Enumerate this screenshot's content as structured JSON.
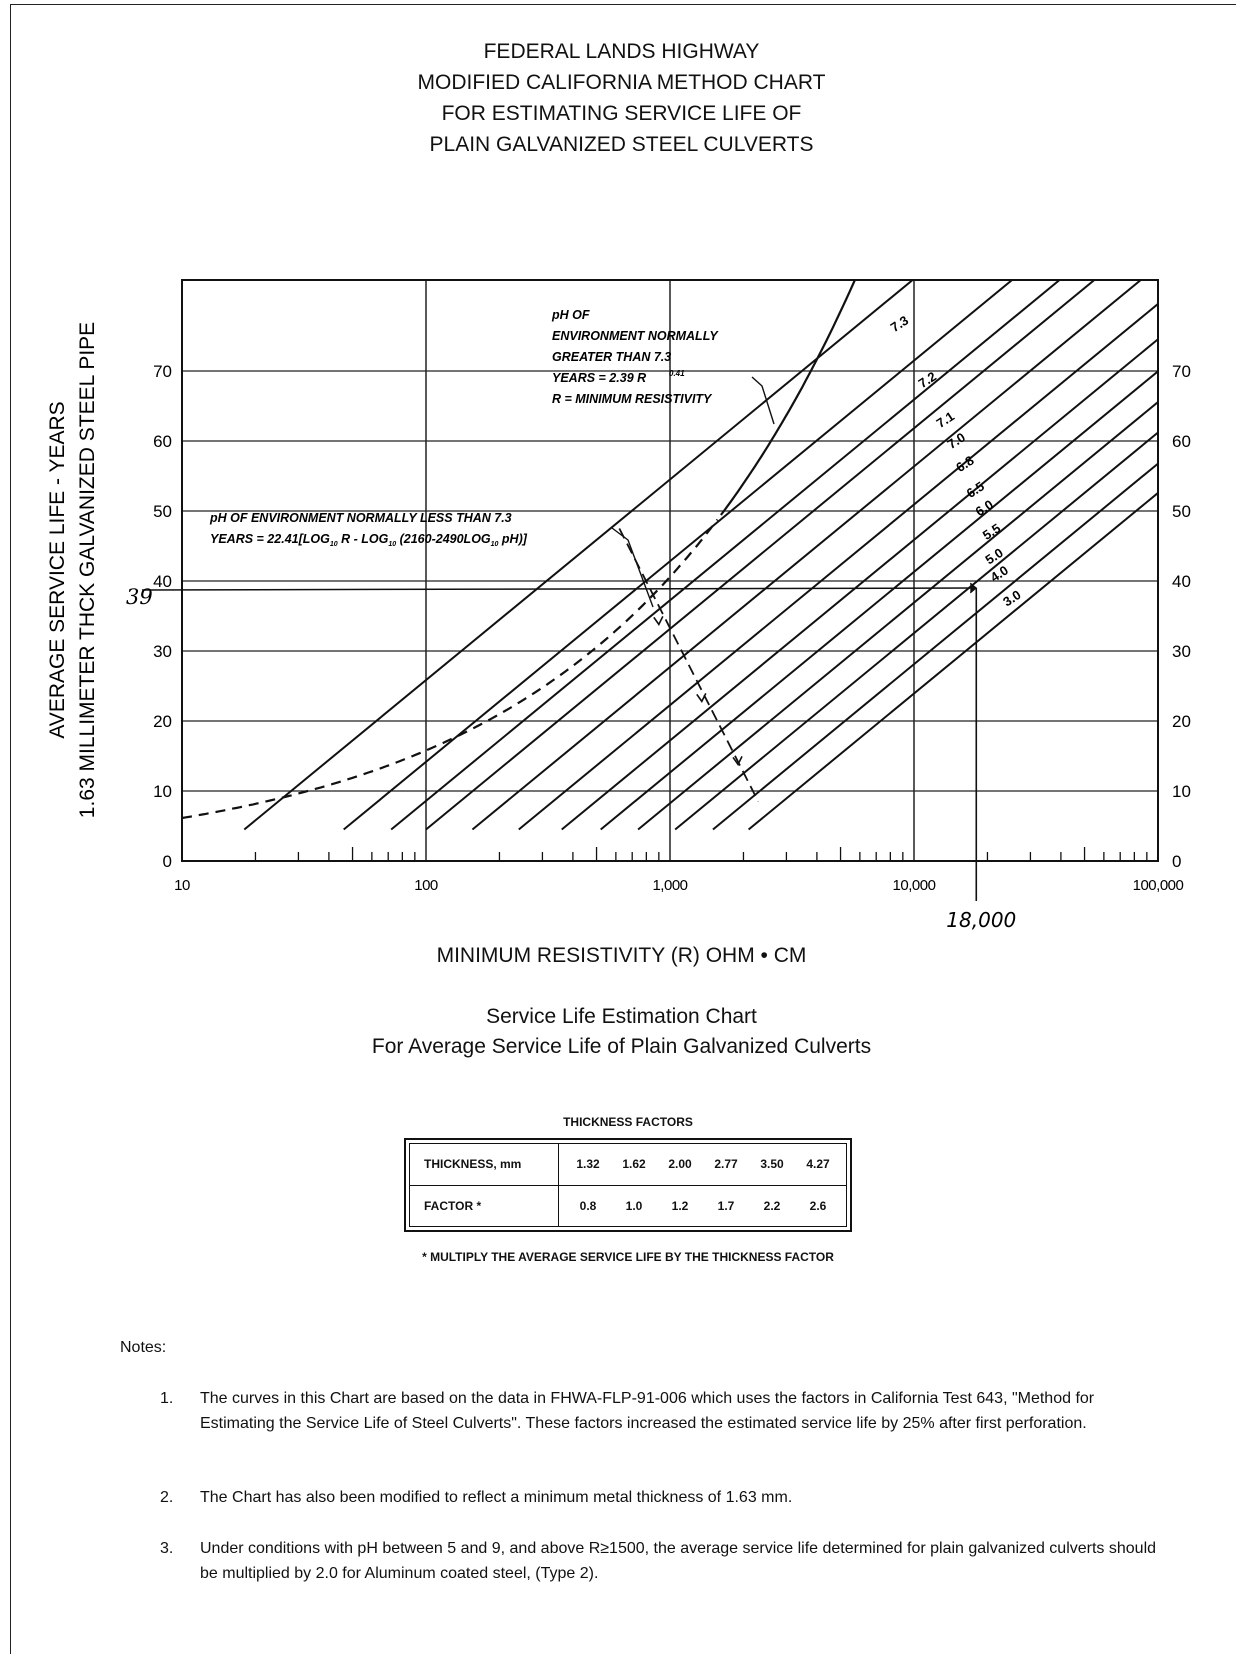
{
  "title_lines": [
    "FEDERAL LANDS HIGHWAY",
    "MODIFIED CALIFORNIA METHOD CHART",
    "FOR ESTIMATING SERVICE LIFE OF",
    "PLAIN GALVANIZED STEEL CULVERTS"
  ],
  "chart_data": {
    "type": "line",
    "x_scale": "log",
    "xlim": [
      10,
      100000
    ],
    "ylim": [
      0,
      83
    ],
    "x_ticks": [
      10,
      100,
      1000,
      10000,
      100000
    ],
    "x_tick_labels": [
      "10",
      "100",
      "1,000",
      "10,000",
      "100,000"
    ],
    "y_ticks": [
      0,
      10,
      20,
      30,
      40,
      50,
      60,
      70
    ],
    "y_tick_labels": [
      "0",
      "10",
      "20",
      "30",
      "40",
      "50",
      "60",
      "70"
    ],
    "xlabel": "MINIMUM RESISTIVITY (R) OHM • CM",
    "ylabel_lines": [
      "AVERAGE SERVICE LIFE - YEARS",
      "1.63 MILLIMETER THCK GALVANIZED STEEL PIPE"
    ],
    "grid": true,
    "ph_lines": [
      {
        "label": "7.3",
        "x_start": 18,
        "slope": 28.66
      },
      {
        "label": "7.2",
        "x_start": 46,
        "slope": 28.66
      },
      {
        "label": "7.1",
        "x_start": 72,
        "slope": 28.66
      },
      {
        "label": "7.0",
        "x_start": 100,
        "slope": 28.66
      },
      {
        "label": "6.8",
        "x_start": 155,
        "slope": 28.66
      },
      {
        "label": "6.5",
        "x_start": 240,
        "slope": 28.66
      },
      {
        "label": "6.0",
        "x_start": 360,
        "slope": 28.66
      },
      {
        "label": "5.5",
        "x_start": 520,
        "slope": 28.66
      },
      {
        "label": "5.0",
        "x_start": 740,
        "slope": 28.66
      },
      {
        "label": "4.0",
        "x_start": 1050,
        "slope": 28.66
      },
      {
        "label": "3.0",
        "x_start": 1500,
        "slope": 28.66
      },
      {
        "label": "",
        "x_start": 2100,
        "slope": 28.66
      }
    ],
    "high_ph_curve": {
      "coef": 2.39,
      "exponent": 0.41
    },
    "annotation_high_ph": [
      "pH OF",
      "ENVIRONMENT NORMALLY",
      "GREATER THAN 7.3",
      "YEARS = 2.39 R",
      "0.41",
      "R = MINIMUM RESISTIVITY"
    ],
    "annotation_low_ph": [
      "pH OF ENVIRONMENT NORMALLY LESS THAN 7.3",
      "YEARS = 22.41[LOG",
      "10",
      " R - LOG",
      "10",
      " (2160-2490LOG",
      "10",
      " pH)]"
    ],
    "handwritten": {
      "x_value": 18000,
      "x_label": "18,000",
      "y_value": 39,
      "y_label": "39"
    }
  },
  "x_axis_label": "MINIMUM RESISTIVITY (R) OHM • CM",
  "caption_lines": [
    "Service Life Estimation Chart",
    "For Average Service Life of Plain Galvanized Culverts"
  ],
  "thickness_table": {
    "title": "THICKNESS FACTORS",
    "row1_label": "THICKNESS, mm",
    "thickness": [
      "1.32",
      "1.62",
      "2.00",
      "2.77",
      "3.50",
      "4.27"
    ],
    "row2_label": "FACTOR *",
    "factor": [
      "0.8",
      "1.0",
      "1.2",
      "1.7",
      "2.2",
      "2.6"
    ],
    "footnote": "* MULTIPLY THE AVERAGE SERVICE LIFE BY THE THICKNESS FACTOR"
  },
  "notes": {
    "heading": "Notes:",
    "items": [
      {
        "num": "1.",
        "text": "The curves in this Chart are based on the data in FHWA-FLP-91-006 which uses the factors in California Test 643, \"Method for Estimating the Service Life of Steel Culverts\".  These factors increased the estimated service life by 25% after first perforation."
      },
      {
        "num": "2.",
        "text": "The Chart has also been modified to reflect a minimum metal thickness of 1.63 mm."
      },
      {
        "num": "3.",
        "text": "Under conditions with pH between 5 and 9, and above R≥1500, the average service life determined for plain galvanized culverts should be multiplied by 2.0 for Aluminum coated steel, (Type 2)."
      }
    ]
  }
}
